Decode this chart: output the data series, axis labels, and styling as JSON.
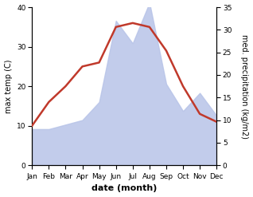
{
  "months": [
    "Jan",
    "Feb",
    "Mar",
    "Apr",
    "May",
    "Jun",
    "Jul",
    "Aug",
    "Sep",
    "Oct",
    "Nov",
    "Dec"
  ],
  "temp": [
    10,
    16,
    20,
    25,
    26,
    35,
    36,
    35,
    29,
    20,
    13,
    11
  ],
  "precip": [
    8,
    8,
    9,
    10,
    14,
    32,
    27,
    36,
    18,
    12,
    16,
    11
  ],
  "temp_ylim": [
    0,
    40
  ],
  "precip_ylim": [
    0,
    35
  ],
  "temp_color": "#c0392b",
  "precip_fill_color": "#b8c4e8",
  "xlabel": "date (month)",
  "ylabel_left": "max temp (C)",
  "ylabel_right": "med. precipitation (kg/m2)",
  "bg_color": "#ffffff",
  "line_width": 1.8,
  "label_fontsize": 7,
  "tick_fontsize": 6.5
}
